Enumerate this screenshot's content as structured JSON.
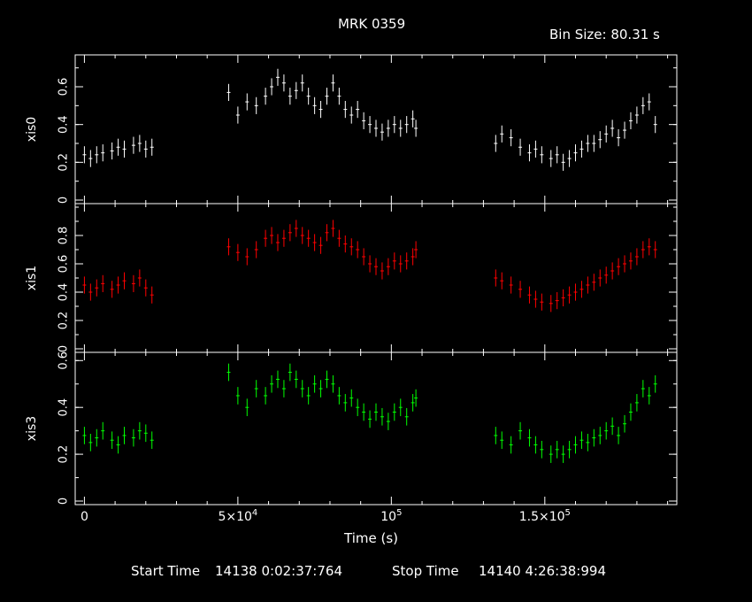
{
  "title": "MRK 0359",
  "bin_size": "Bin Size: 80.31 s",
  "xlabel": "Time (s)",
  "footer": {
    "start_label": "Start Time",
    "start_value": "14138   0:02:37:764",
    "stop_label": "Stop Time",
    "stop_value": "14140   4:26:38:994"
  },
  "colors": {
    "background": "#000000",
    "axes": "#ffffff"
  },
  "chart_data": [
    {
      "type": "scatter",
      "ylabel": "xis0",
      "color": "#ffffff",
      "xlim": [
        -3000,
        193000
      ],
      "ylim": [
        0,
        0.75
      ],
      "yticks": [
        0,
        0.2,
        0.4,
        0.6
      ],
      "xticks": [
        {
          "value": 0,
          "label": "0"
        },
        {
          "value": 50000,
          "label": "5×10^4"
        },
        {
          "value": 100000,
          "label": "10^5"
        },
        {
          "value": 150000,
          "label": "1.5×10^5"
        }
      ],
      "series": [
        {
          "x": [
            0,
            2000,
            4000,
            6000,
            9000,
            11000,
            13000,
            16000,
            18000,
            20000,
            22000
          ],
          "y": [
            0.24,
            0.22,
            0.24,
            0.25,
            0.26,
            0.28,
            0.27,
            0.29,
            0.3,
            0.27,
            0.28
          ]
        },
        {
          "x": [
            47000,
            50000,
            53000,
            56000,
            59000,
            61000,
            63000,
            65000,
            67000,
            69000,
            71000,
            73000,
            75000,
            77000,
            79000,
            81000,
            83000,
            85000,
            87000,
            89000,
            91000,
            93000,
            95000,
            97000,
            99000,
            101000,
            103000,
            105000,
            107000,
            108000
          ],
          "y": [
            0.57,
            0.45,
            0.52,
            0.5,
            0.55,
            0.6,
            0.65,
            0.62,
            0.55,
            0.58,
            0.62,
            0.55,
            0.5,
            0.48,
            0.55,
            0.62,
            0.55,
            0.48,
            0.45,
            0.48,
            0.42,
            0.4,
            0.38,
            0.36,
            0.38,
            0.4,
            0.38,
            0.4,
            0.43,
            0.38
          ]
        },
        {
          "x": [
            134000,
            136000,
            139000,
            142000,
            145000,
            147000,
            149000,
            152000,
            154000,
            156000,
            158000,
            160000,
            162000,
            164000,
            166000,
            168000,
            170000,
            172000,
            174000,
            176000,
            178000,
            180000,
            182000,
            184000,
            186000
          ],
          "y": [
            0.3,
            0.35,
            0.33,
            0.28,
            0.25,
            0.27,
            0.24,
            0.22,
            0.24,
            0.2,
            0.22,
            0.25,
            0.27,
            0.3,
            0.3,
            0.32,
            0.35,
            0.38,
            0.33,
            0.37,
            0.42,
            0.45,
            0.5,
            0.52,
            0.4
          ]
        }
      ]
    },
    {
      "type": "scatter",
      "ylabel": "xis1",
      "color": "#ff0000",
      "xlim": [
        -3000,
        193000
      ],
      "ylim": [
        0,
        1.0
      ],
      "yticks": [
        0,
        0.2,
        0.4,
        0.6,
        0.8
      ],
      "series": [
        {
          "x": [
            0,
            2000,
            4000,
            6000,
            9000,
            11000,
            13000,
            16000,
            18000,
            20000,
            22000
          ],
          "y": [
            0.45,
            0.4,
            0.43,
            0.46,
            0.42,
            0.45,
            0.48,
            0.46,
            0.5,
            0.43,
            0.38
          ]
        },
        {
          "x": [
            47000,
            50000,
            53000,
            56000,
            59000,
            61000,
            63000,
            65000,
            67000,
            69000,
            71000,
            73000,
            75000,
            77000,
            79000,
            81000,
            83000,
            85000,
            87000,
            89000,
            91000,
            93000,
            95000,
            97000,
            99000,
            101000,
            103000,
            105000,
            107000,
            108000
          ],
          "y": [
            0.72,
            0.68,
            0.65,
            0.7,
            0.78,
            0.8,
            0.75,
            0.78,
            0.82,
            0.85,
            0.8,
            0.78,
            0.75,
            0.73,
            0.82,
            0.85,
            0.78,
            0.74,
            0.72,
            0.7,
            0.65,
            0.6,
            0.58,
            0.55,
            0.58,
            0.62,
            0.6,
            0.62,
            0.65,
            0.7
          ]
        },
        {
          "x": [
            134000,
            136000,
            139000,
            142000,
            145000,
            147000,
            149000,
            152000,
            154000,
            156000,
            158000,
            160000,
            162000,
            164000,
            166000,
            168000,
            170000,
            172000,
            174000,
            176000,
            178000,
            180000,
            182000,
            184000,
            186000
          ],
          "y": [
            0.5,
            0.48,
            0.45,
            0.42,
            0.38,
            0.35,
            0.33,
            0.32,
            0.34,
            0.36,
            0.38,
            0.4,
            0.42,
            0.45,
            0.47,
            0.5,
            0.52,
            0.55,
            0.58,
            0.6,
            0.62,
            0.65,
            0.7,
            0.72,
            0.7
          ]
        }
      ]
    },
    {
      "type": "scatter",
      "ylabel": "xis3",
      "color": "#00ff00",
      "xlim": [
        -3000,
        193000
      ],
      "ylim": [
        0,
        0.62
      ],
      "yticks": [
        0,
        0.2,
        0.4,
        0.6
      ],
      "series": [
        {
          "x": [
            0,
            2000,
            4000,
            6000,
            9000,
            11000,
            13000,
            16000,
            18000,
            20000,
            22000
          ],
          "y": [
            0.28,
            0.25,
            0.27,
            0.3,
            0.26,
            0.24,
            0.28,
            0.27,
            0.3,
            0.29,
            0.26
          ]
        },
        {
          "x": [
            47000,
            50000,
            53000,
            56000,
            59000,
            61000,
            63000,
            65000,
            67000,
            69000,
            71000,
            73000,
            75000,
            77000,
            79000,
            81000,
            83000,
            85000,
            87000,
            89000,
            91000,
            93000,
            95000,
            97000,
            99000,
            101000,
            103000,
            105000,
            107000,
            108000
          ],
          "y": [
            0.55,
            0.45,
            0.4,
            0.48,
            0.45,
            0.5,
            0.52,
            0.48,
            0.55,
            0.52,
            0.48,
            0.45,
            0.5,
            0.48,
            0.52,
            0.5,
            0.45,
            0.42,
            0.44,
            0.4,
            0.38,
            0.35,
            0.38,
            0.36,
            0.34,
            0.38,
            0.4,
            0.36,
            0.42,
            0.44
          ]
        },
        {
          "x": [
            134000,
            136000,
            139000,
            142000,
            145000,
            147000,
            149000,
            152000,
            154000,
            156000,
            158000,
            160000,
            162000,
            164000,
            166000,
            168000,
            170000,
            172000,
            174000,
            176000,
            178000,
            180000,
            182000,
            184000,
            186000
          ],
          "y": [
            0.28,
            0.26,
            0.24,
            0.3,
            0.27,
            0.24,
            0.22,
            0.2,
            0.22,
            0.2,
            0.22,
            0.24,
            0.26,
            0.25,
            0.27,
            0.28,
            0.3,
            0.32,
            0.28,
            0.33,
            0.38,
            0.42,
            0.48,
            0.45,
            0.5
          ]
        }
      ]
    }
  ]
}
